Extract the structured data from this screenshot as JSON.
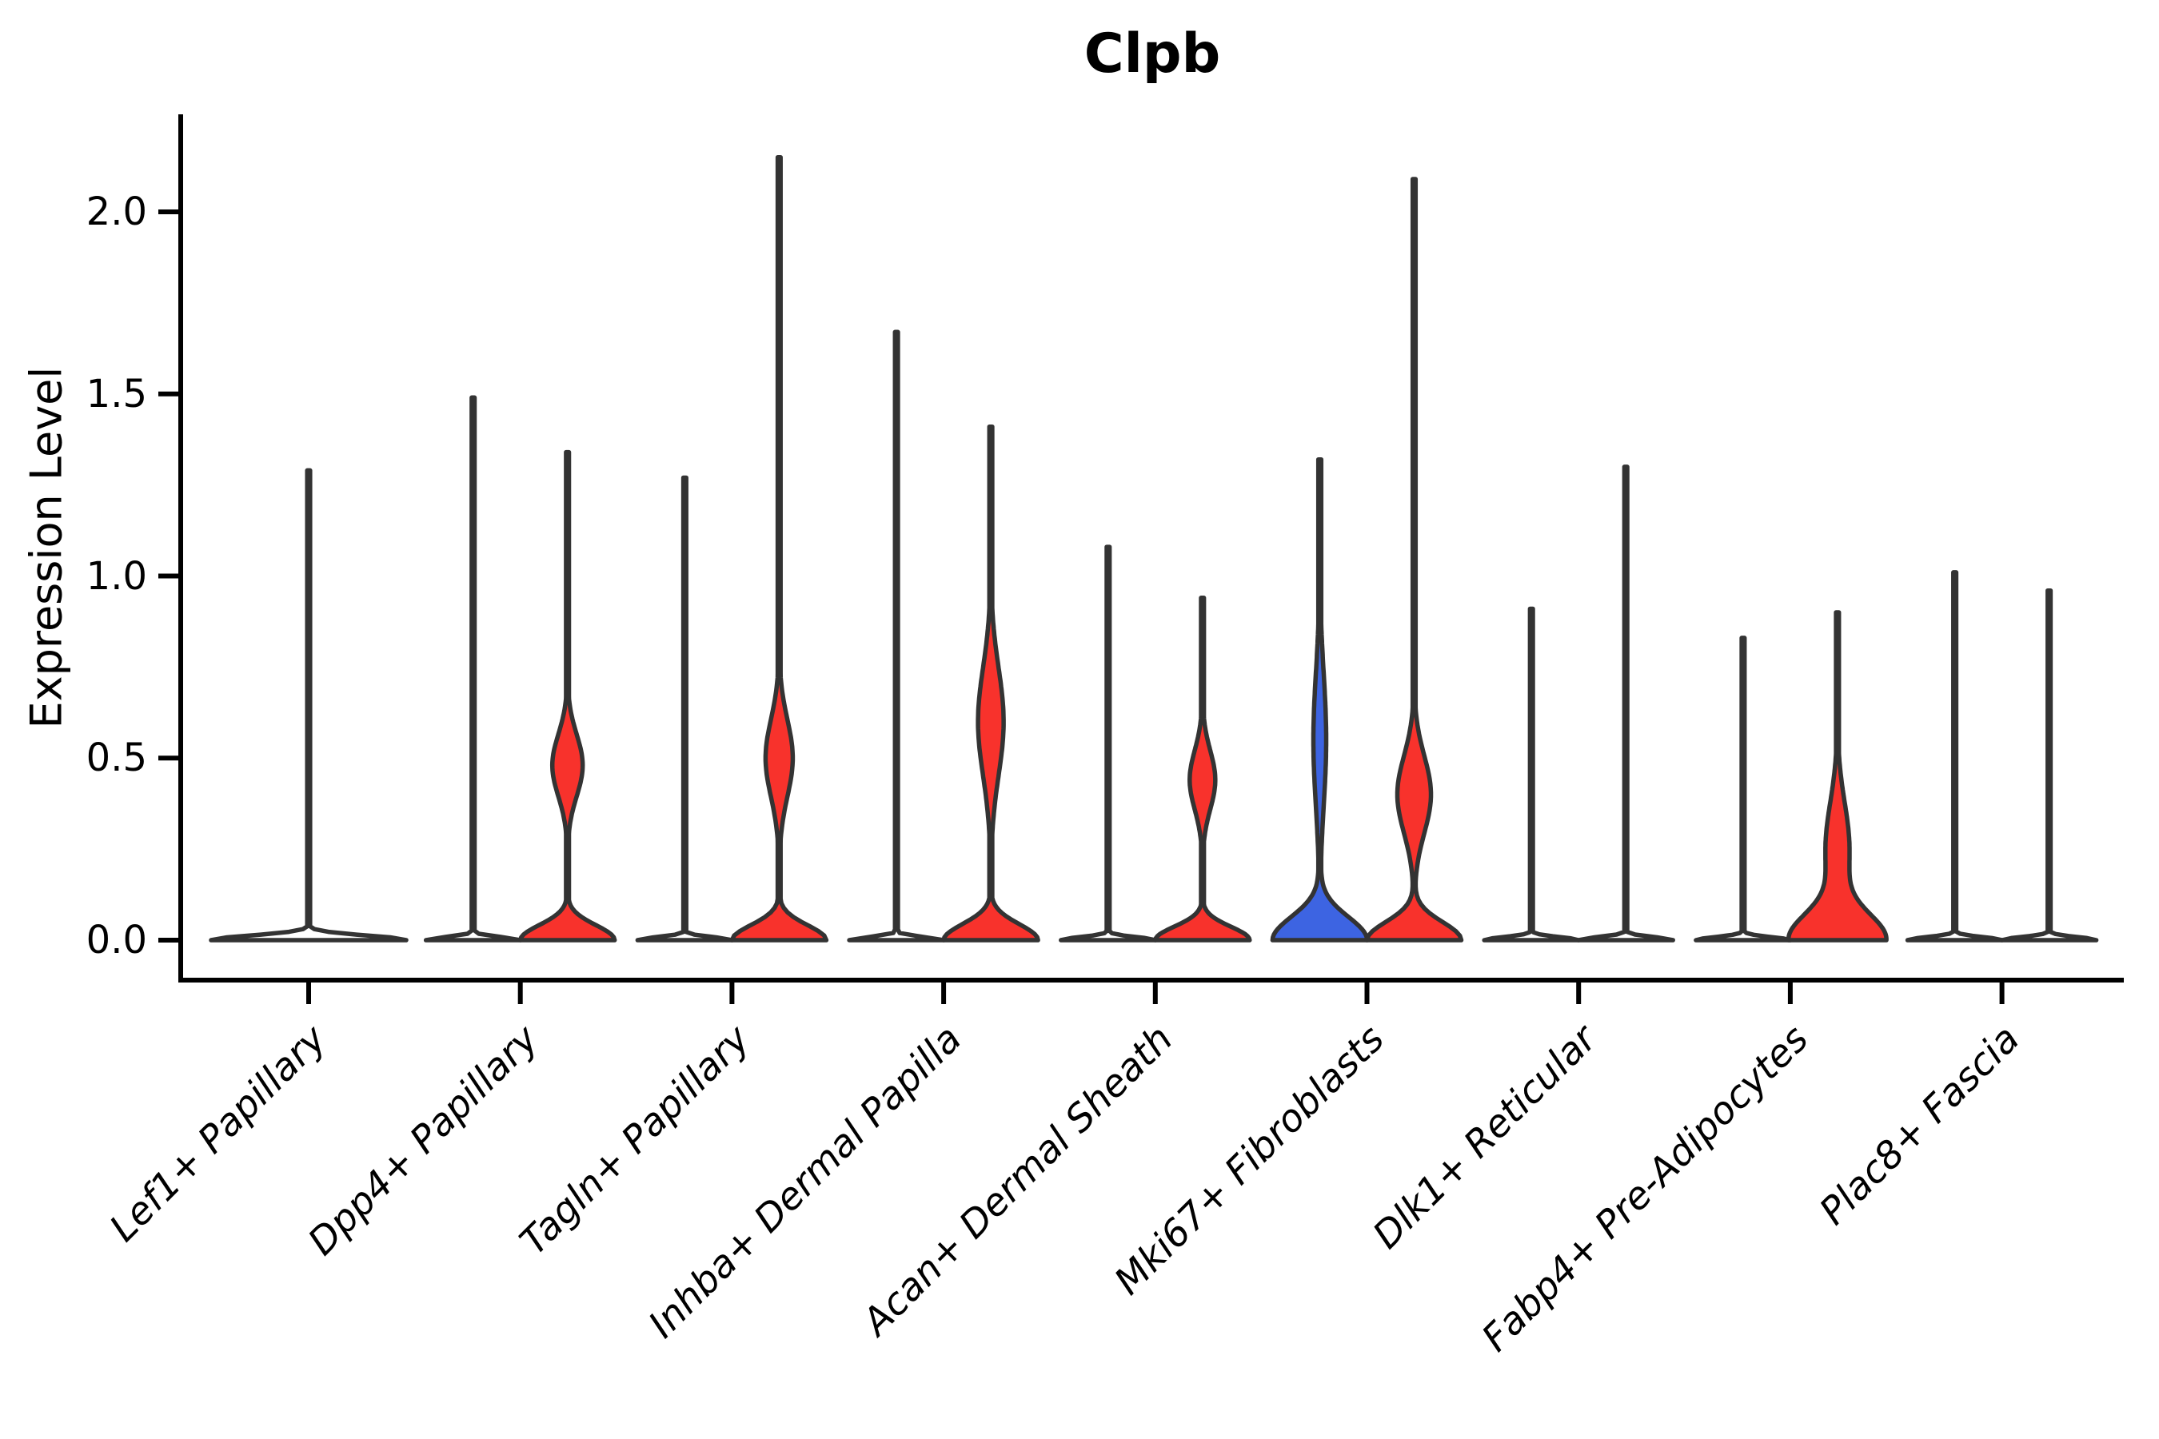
{
  "title": "Clpb",
  "colors": {
    "red_fill": "#F8322C",
    "blue_fill": "#3D64E2",
    "empty_fill": "#FFFFFF",
    "violin_outline": "#333333",
    "axis": "#000000",
    "background": "#FFFFFF"
  },
  "chart_data": {
    "type": "violin",
    "title": "Clpb",
    "xlabel": "",
    "ylabel": "Expression Level",
    "ylim": [
      0,
      2.27
    ],
    "grid": false,
    "legend": "none",
    "ytick_labels": [
      "0.0",
      "0.5",
      "1.0",
      "1.5",
      "2.0"
    ],
    "categories": [
      "Lef1+ Papillary",
      "Dpp4+ Papillary",
      "Tagln+ Papillary",
      "Inhba+ Dermal Papilla",
      "Acan+ Dermal Sheath",
      "Mki67+ Fibroblasts",
      "Dlk1+ Reticular",
      "Fabp4+ Pre-Adipocytes",
      "Plac8+ Fascia"
    ],
    "violins": [
      {
        "category": "Lef1+ Papillary",
        "side": "single",
        "fill": "#FFFFFF",
        "max_expression": 1.29,
        "base_halfwidth": 122,
        "base_sigma": 0.018,
        "bulges": []
      },
      {
        "category": "Dpp4+ Papillary",
        "side": "left",
        "fill": "#FFFFFF",
        "max_expression": 1.49,
        "base_halfwidth": 59,
        "base_sigma": 0.012,
        "bulges": []
      },
      {
        "category": "Dpp4+ Papillary",
        "side": "right",
        "fill": "#F8322C",
        "max_expression": 1.34,
        "base_halfwidth": 59,
        "base_sigma": 0.058,
        "bulges": [
          {
            "center": 0.48,
            "halfwidth": 19,
            "sigma": 0.12
          }
        ]
      },
      {
        "category": "Tagln+ Papillary",
        "side": "left",
        "fill": "#FFFFFF",
        "max_expression": 1.27,
        "base_halfwidth": 59,
        "base_sigma": 0.012,
        "bulges": []
      },
      {
        "category": "Tagln+ Papillary",
        "side": "right",
        "fill": "#F8322C",
        "max_expression": 2.15,
        "base_halfwidth": 59,
        "base_sigma": 0.058,
        "bulges": [
          {
            "center": 0.5,
            "halfwidth": 17,
            "sigma": 0.15
          }
        ]
      },
      {
        "category": "Inhba+ Dermal Papilla",
        "side": "left",
        "fill": "#FFFFFF",
        "max_expression": 1.67,
        "base_halfwidth": 59,
        "base_sigma": 0.012,
        "bulges": []
      },
      {
        "category": "Inhba+ Dermal Papilla",
        "side": "right",
        "fill": "#F8322C",
        "max_expression": 1.41,
        "base_halfwidth": 59,
        "base_sigma": 0.062,
        "bulges": [
          {
            "center": 0.6,
            "halfwidth": 16,
            "sigma": 0.21
          }
        ]
      },
      {
        "category": "Acan+ Dermal Sheath",
        "side": "left",
        "fill": "#FFFFFF",
        "max_expression": 1.08,
        "base_halfwidth": 59,
        "base_sigma": 0.012,
        "bulges": []
      },
      {
        "category": "Acan+ Dermal Sheath",
        "side": "right",
        "fill": "#F8322C",
        "max_expression": 0.94,
        "base_halfwidth": 59,
        "base_sigma": 0.052,
        "bulges": [
          {
            "center": 0.44,
            "halfwidth": 16,
            "sigma": 0.115
          }
        ]
      },
      {
        "category": "Mki67+ Fibroblasts",
        "side": "left",
        "fill": "#3D64E2",
        "max_expression": 1.32,
        "base_halfwidth": 59,
        "base_sigma": 0.09,
        "bulges": [
          {
            "center": 0.55,
            "halfwidth": 8,
            "sigma": 0.26
          }
        ]
      },
      {
        "category": "Mki67+ Fibroblasts",
        "side": "right",
        "fill": "#F8322C",
        "max_expression": 2.09,
        "base_halfwidth": 59,
        "base_sigma": 0.07,
        "bulges": [
          {
            "center": 0.4,
            "halfwidth": 21,
            "sigma": 0.15
          }
        ]
      },
      {
        "category": "Dlk1+ Reticular",
        "side": "left",
        "fill": "#FFFFFF",
        "max_expression": 0.91,
        "base_halfwidth": 59,
        "base_sigma": 0.012,
        "bulges": []
      },
      {
        "category": "Dlk1+ Reticular",
        "side": "right",
        "fill": "#FFFFFF",
        "max_expression": 1.3,
        "base_halfwidth": 59,
        "base_sigma": 0.012,
        "bulges": []
      },
      {
        "category": "Fabp4+ Pre-Adipocytes",
        "side": "left",
        "fill": "#FFFFFF",
        "max_expression": 0.83,
        "base_halfwidth": 59,
        "base_sigma": 0.012,
        "bulges": []
      },
      {
        "category": "Fabp4+ Pre-Adipocytes",
        "side": "right",
        "fill": "#F8322C",
        "max_expression": 0.9,
        "base_halfwidth": 59,
        "base_sigma": 0.1,
        "bulges": [
          {
            "center": 0.25,
            "halfwidth": 15,
            "sigma": 0.18
          }
        ]
      },
      {
        "category": "Plac8+ Fascia",
        "side": "left",
        "fill": "#FFFFFF",
        "max_expression": 1.01,
        "base_halfwidth": 59,
        "base_sigma": 0.012,
        "bulges": []
      },
      {
        "category": "Plac8+ Fascia",
        "side": "right",
        "fill": "#FFFFFF",
        "max_expression": 0.96,
        "base_halfwidth": 59,
        "base_sigma": 0.012,
        "bulges": []
      }
    ]
  }
}
